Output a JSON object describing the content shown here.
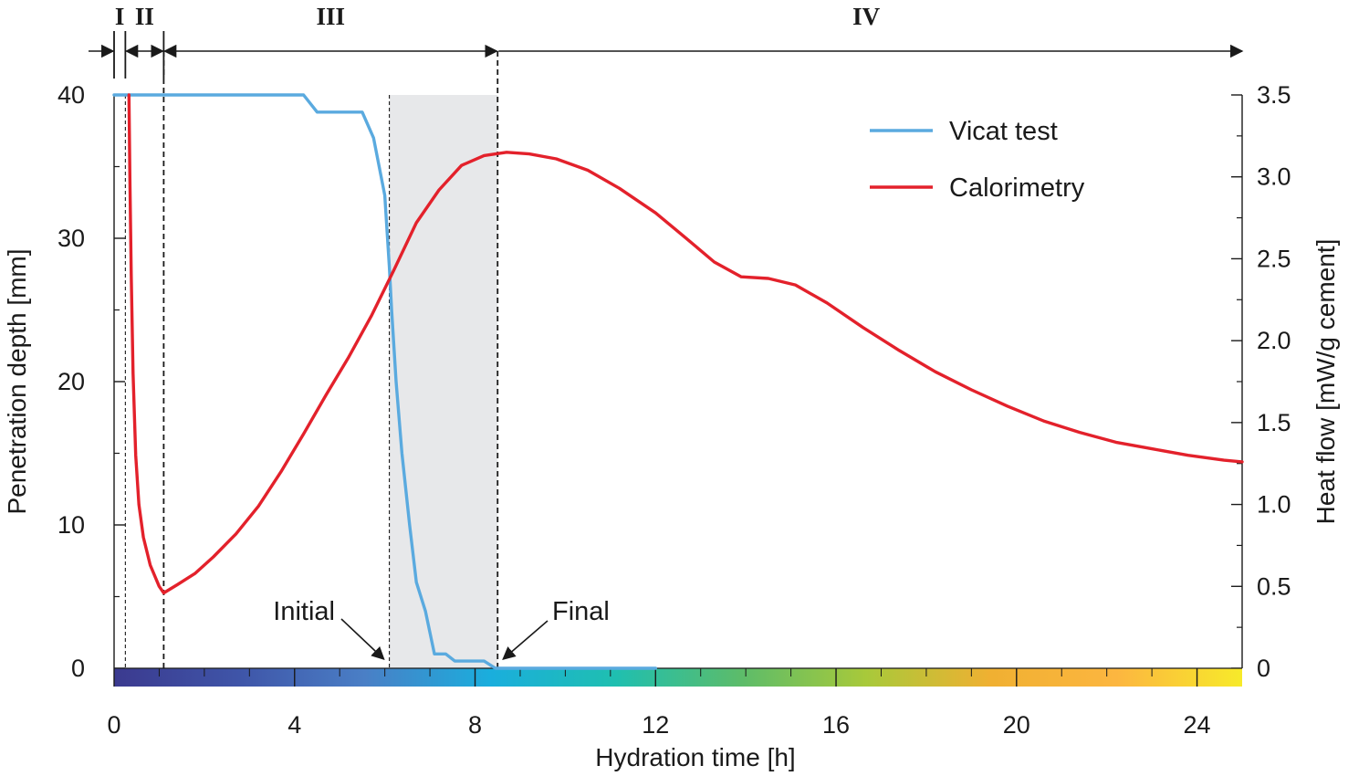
{
  "chart_data": {
    "type": "line",
    "xlabel": "Hydration time [h]",
    "ylabel_left": "Penetration depth [mm]",
    "ylabel_right": "Heat flow [mW/g cement]",
    "xlim": [
      0,
      25
    ],
    "ylim_left": [
      0,
      40
    ],
    "ylim_right": [
      0,
      3.5
    ],
    "x_ticks": [
      0,
      4,
      8,
      12,
      16,
      20,
      24
    ],
    "y_left_ticks": [
      0,
      10,
      20,
      30,
      40
    ],
    "y_right_ticks": [
      "0",
      "0.5",
      "1.0",
      "1.5",
      "2.0",
      "2.5",
      "3.0",
      "3.5"
    ],
    "grid": false,
    "legend_position": "top-right",
    "series": [
      {
        "name": "Vicat test",
        "axis": "left",
        "color": "#5aaadf",
        "points": [
          [
            0,
            40
          ],
          [
            4.2,
            40
          ],
          [
            4.5,
            38.8
          ],
          [
            5.5,
            38.8
          ],
          [
            5.75,
            37
          ],
          [
            6.0,
            33
          ],
          [
            6.1,
            28
          ],
          [
            6.15,
            25
          ],
          [
            6.25,
            20
          ],
          [
            6.38,
            15
          ],
          [
            6.55,
            10
          ],
          [
            6.7,
            6
          ],
          [
            6.9,
            4
          ],
          [
            7.1,
            1
          ],
          [
            7.35,
            1
          ],
          [
            7.55,
            0.5
          ],
          [
            8.2,
            0.5
          ],
          [
            8.45,
            0
          ],
          [
            12,
            0
          ]
        ]
      },
      {
        "name": "Calorimetry",
        "axis": "right",
        "color": "#e3212b",
        "points": [
          [
            0.33,
            3.5
          ],
          [
            0.35,
            3.0
          ],
          [
            0.38,
            2.4
          ],
          [
            0.42,
            1.8
          ],
          [
            0.48,
            1.3
          ],
          [
            0.55,
            1.0
          ],
          [
            0.65,
            0.8
          ],
          [
            0.8,
            0.63
          ],
          [
            1.0,
            0.5
          ],
          [
            1.1,
            0.46
          ],
          [
            1.4,
            0.51
          ],
          [
            1.8,
            0.58
          ],
          [
            2.2,
            0.68
          ],
          [
            2.7,
            0.82
          ],
          [
            3.2,
            0.99
          ],
          [
            3.7,
            1.2
          ],
          [
            4.2,
            1.43
          ],
          [
            4.7,
            1.67
          ],
          [
            5.2,
            1.9
          ],
          [
            5.7,
            2.15
          ],
          [
            6.2,
            2.43
          ],
          [
            6.7,
            2.72
          ],
          [
            7.2,
            2.92
          ],
          [
            7.7,
            3.07
          ],
          [
            8.2,
            3.13
          ],
          [
            8.7,
            3.15
          ],
          [
            9.2,
            3.14
          ],
          [
            9.8,
            3.11
          ],
          [
            10.5,
            3.04
          ],
          [
            11.2,
            2.93
          ],
          [
            12,
            2.78
          ],
          [
            12.7,
            2.62
          ],
          [
            13.3,
            2.48
          ],
          [
            13.9,
            2.39
          ],
          [
            14.5,
            2.38
          ],
          [
            15.1,
            2.34
          ],
          [
            15.8,
            2.23
          ],
          [
            16.6,
            2.08
          ],
          [
            17.4,
            1.94
          ],
          [
            18.2,
            1.81
          ],
          [
            19,
            1.7
          ],
          [
            19.8,
            1.6
          ],
          [
            20.6,
            1.51
          ],
          [
            21.4,
            1.44
          ],
          [
            22.2,
            1.38
          ],
          [
            23,
            1.34
          ],
          [
            23.8,
            1.3
          ],
          [
            24.6,
            1.27
          ],
          [
            25,
            1.26
          ]
        ]
      }
    ],
    "stages": [
      {
        "label": "I",
        "start": 0,
        "end": 0.25
      },
      {
        "label": "II",
        "start": 0.25,
        "end": 1.1
      },
      {
        "label": "III",
        "start": 1.1,
        "end": 8.5
      },
      {
        "label": "IV",
        "start": 8.5,
        "end": 25
      }
    ],
    "boundaries": [
      {
        "x": 0.25,
        "style": "thin"
      },
      {
        "x": 1.1,
        "style": "thick"
      },
      {
        "x": 6.1,
        "style": "thin"
      },
      {
        "x": 8.5,
        "style": "thick"
      }
    ],
    "shaded_region": {
      "start": 6.1,
      "end": 8.5,
      "color": "#e7e8ea"
    },
    "annotations": [
      {
        "text": "Initial",
        "target_x": 6.1
      },
      {
        "text": "Final",
        "target_x": 8.5
      }
    ],
    "color_bar": {
      "stops": [
        "#3b3a8f",
        "#3f55a8",
        "#4a7fc6",
        "#1aaedd",
        "#1fbfb0",
        "#5cbc6a",
        "#a8c93a",
        "#f0b032",
        "#fcb640",
        "#f7ea2a"
      ],
      "major_ticks": [
        0,
        4,
        8,
        12,
        16,
        20,
        24
      ],
      "minor_step": 1
    }
  }
}
